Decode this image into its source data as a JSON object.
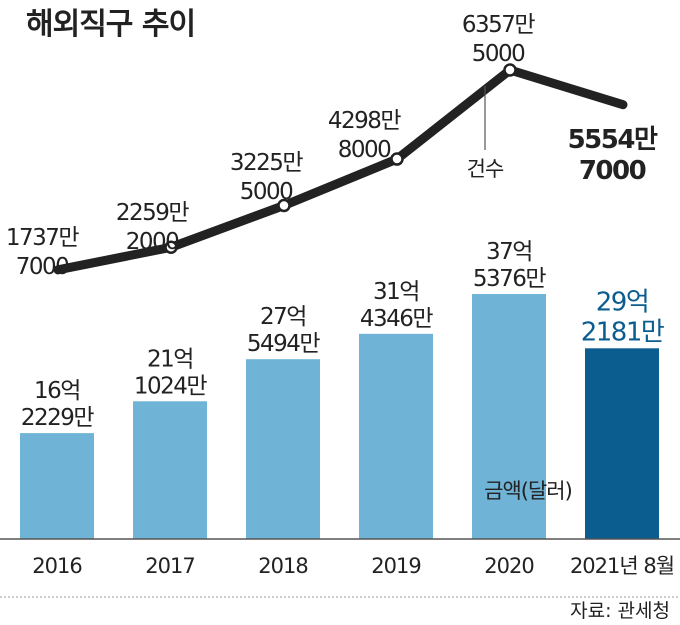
{
  "chart_data": {
    "title": "해외직구 추이",
    "type": "bar+line",
    "categories": [
      "2016",
      "2017",
      "2018",
      "2019",
      "2020",
      "2021년 8월"
    ],
    "series": [
      {
        "name": "금액(달러)",
        "type": "bar",
        "values": [
          1622290000,
          2110240000,
          2754940000,
          3143460000,
          3753760000,
          2921810000
        ],
        "labels": [
          [
            "16억",
            "2229만"
          ],
          [
            "21억",
            "1024만"
          ],
          [
            "27억",
            "5494만"
          ],
          [
            "31억",
            "4346만"
          ],
          [
            "37억",
            "5376만"
          ],
          [
            "29억",
            "2181만"
          ]
        ],
        "colors": [
          "#6fb3d6",
          "#6fb3d6",
          "#6fb3d6",
          "#6fb3d6",
          "#6fb3d6",
          "#0b5d8f"
        ]
      },
      {
        "name": "건수",
        "type": "line",
        "values": [
          17377000,
          22592000,
          32255000,
          42988000,
          63575000,
          55547000
        ],
        "labels": [
          [
            "1737만",
            "7000"
          ],
          [
            "2259만",
            "2000"
          ],
          [
            "3225만",
            "5000"
          ],
          [
            "4298만",
            "8000"
          ],
          [
            "6357만",
            "5000"
          ],
          [
            "5554만",
            "7000"
          ]
        ],
        "color": "#222222"
      }
    ],
    "annotation": "건수",
    "source": "자료: 관세청"
  }
}
